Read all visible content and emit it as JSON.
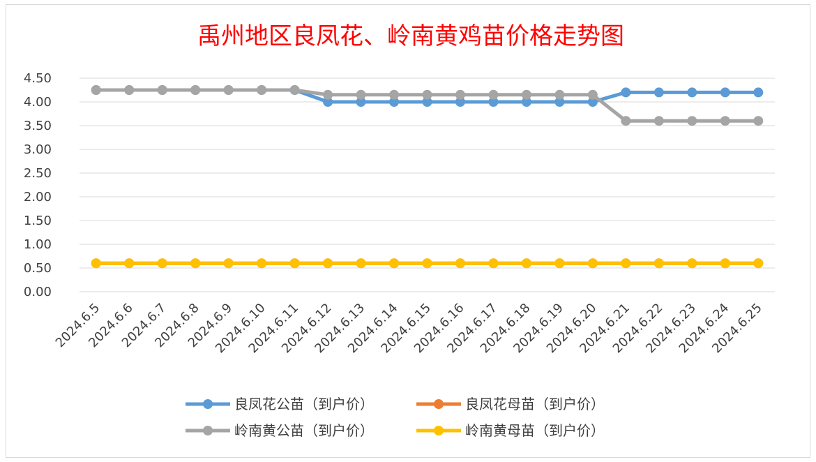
{
  "chart_data": {
    "type": "line",
    "title": "禹州地区良凤花、岭南黄鸡苗价格走势图",
    "xlabel": "",
    "ylabel": "",
    "ylim": [
      0,
      4.5
    ],
    "yticks": [
      "0.00",
      "0.50",
      "1.00",
      "1.50",
      "2.00",
      "2.50",
      "3.00",
      "3.50",
      "4.00",
      "4.50"
    ],
    "grid": true,
    "legend_position": "bottom",
    "categories": [
      "2024.6.5",
      "2024.6.6",
      "2024.6.7",
      "2024.6.8",
      "2024.6.9",
      "2024.6.10",
      "2024.6.11",
      "2024.6.12",
      "2024.6.13",
      "2024.6.14",
      "2024.6.15",
      "2024.6.16",
      "2024.6.17",
      "2024.6.18",
      "2024.6.19",
      "2024.6.20",
      "2024.6.21",
      "2024.6.22",
      "2024.6.23",
      "2024.6.24",
      "2024.6.25"
    ],
    "series": [
      {
        "name": "良凤花公苗（到户价）",
        "color": "#5b9bd5",
        "values": [
          4.25,
          4.25,
          4.25,
          4.25,
          4.25,
          4.25,
          4.25,
          4.0,
          4.0,
          4.0,
          4.0,
          4.0,
          4.0,
          4.0,
          4.0,
          4.0,
          4.2,
          4.2,
          4.2,
          4.2,
          4.2
        ]
      },
      {
        "name": "良凤花母苗（到户价）",
        "color": "#ed7d31",
        "values": [
          0.6,
          0.6,
          0.6,
          0.6,
          0.6,
          0.6,
          0.6,
          0.6,
          0.6,
          0.6,
          0.6,
          0.6,
          0.6,
          0.6,
          0.6,
          0.6,
          0.6,
          0.6,
          0.6,
          0.6,
          0.6
        ]
      },
      {
        "name": "岭南黄公苗（到户价）",
        "color": "#a5a5a5",
        "values": [
          4.25,
          4.25,
          4.25,
          4.25,
          4.25,
          4.25,
          4.25,
          4.15,
          4.15,
          4.15,
          4.15,
          4.15,
          4.15,
          4.15,
          4.15,
          4.15,
          3.6,
          3.6,
          3.6,
          3.6,
          3.6
        ]
      },
      {
        "name": "岭南黄母苗（到户价）",
        "color": "#ffc000",
        "values": [
          0.6,
          0.6,
          0.6,
          0.6,
          0.6,
          0.6,
          0.6,
          0.6,
          0.6,
          0.6,
          0.6,
          0.6,
          0.6,
          0.6,
          0.6,
          0.6,
          0.6,
          0.6,
          0.6,
          0.6,
          0.6
        ]
      }
    ]
  }
}
